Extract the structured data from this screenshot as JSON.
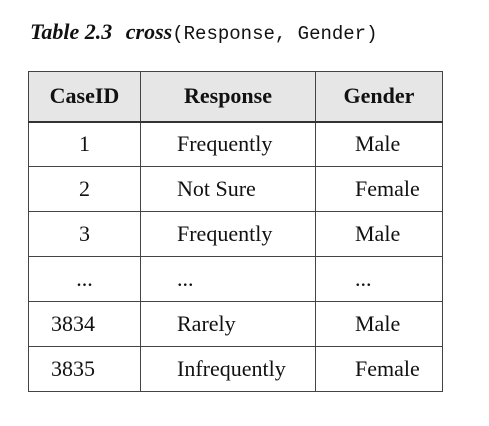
{
  "caption": {
    "label": "Table 2.3",
    "function_name": "cross",
    "open_paren": "(",
    "arguments": "Response, Gender",
    "close_paren": ")"
  },
  "table": {
    "headers": [
      "CaseID",
      "Response",
      "Gender"
    ],
    "rows": [
      {
        "case_id": "1",
        "response": "Frequently",
        "gender": "Male"
      },
      {
        "case_id": "2",
        "response": "Not Sure",
        "gender": "Female"
      },
      {
        "case_id": "3",
        "response": "Frequently",
        "gender": "Male"
      },
      {
        "case_id": "...",
        "response": "...",
        "gender": "..."
      },
      {
        "case_id": "3834",
        "response": "Rarely",
        "gender": "Male"
      },
      {
        "case_id": "3835",
        "response": "Infrequently",
        "gender": "Female"
      }
    ]
  },
  "colors": {
    "header_background": "#e6e6e6",
    "border": "#444444",
    "text": "#111111"
  }
}
